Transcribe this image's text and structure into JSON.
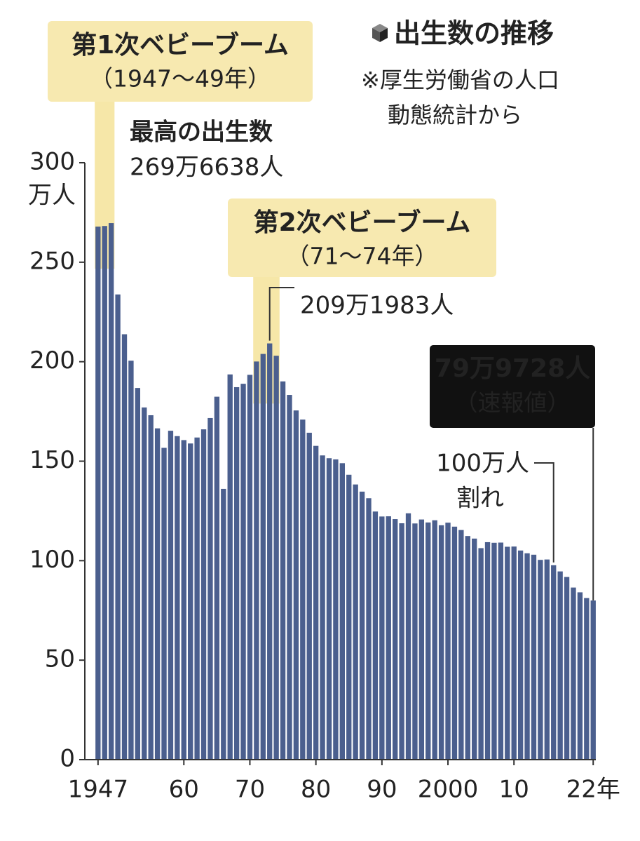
{
  "chart_data": {
    "type": "bar",
    "title": "出生数の推移",
    "source": [
      "※厚生労働省の人口",
      "動態統計から"
    ],
    "y_unit": "万人",
    "color": "#4b5f8e",
    "x": [
      1947,
      1948,
      1949,
      1950,
      1951,
      1952,
      1953,
      1954,
      1955,
      1956,
      1957,
      1958,
      1959,
      1960,
      1961,
      1962,
      1963,
      1964,
      1965,
      1966,
      1967,
      1968,
      1969,
      1970,
      1971,
      1972,
      1973,
      1974,
      1975,
      1976,
      1977,
      1978,
      1979,
      1980,
      1981,
      1982,
      1983,
      1984,
      1985,
      1986,
      1987,
      1988,
      1989,
      1990,
      1991,
      1992,
      1993,
      1994,
      1995,
      1996,
      1997,
      1998,
      1999,
      2000,
      2001,
      2002,
      2003,
      2004,
      2005,
      2006,
      2007,
      2008,
      2009,
      2010,
      2011,
      2012,
      2013,
      2014,
      2015,
      2016,
      2017,
      2018,
      2019,
      2020,
      2021,
      2022
    ],
    "values": [
      267.9,
      268.2,
      269.6638,
      233.8,
      213.8,
      200.5,
      186.8,
      177.0,
      173.1,
      166.5,
      156.7,
      165.3,
      162.6,
      160.6,
      158.9,
      161.9,
      166.0,
      171.7,
      182.4,
      136.1,
      193.6,
      187.2,
      188.9,
      193.4,
      200.1,
      203.9,
      209.1983,
      203.0,
      190.1,
      183.3,
      175.5,
      170.9,
      164.3,
      157.7,
      152.9,
      151.5,
      150.9,
      149.0,
      143.2,
      138.3,
      134.7,
      131.4,
      124.7,
      122.2,
      122.3,
      120.9,
      118.8,
      123.8,
      118.7,
      120.7,
      119.2,
      120.3,
      117.8,
      119.1,
      117.1,
      115.4,
      112.4,
      111.1,
      106.3,
      109.3,
      109.0,
      109.1,
      107.0,
      107.1,
      105.1,
      103.7,
      103.0,
      100.4,
      100.6,
      97.7,
      94.6,
      91.8,
      86.5,
      84.1,
      81.2,
      79.9728
    ],
    "value_labels": [
      null,
      null,
      "269万6638人",
      null,
      null,
      null,
      null,
      null,
      null,
      null,
      null,
      null,
      null,
      null,
      null,
      null,
      null,
      null,
      null,
      null,
      null,
      null,
      null,
      null,
      null,
      null,
      "209万1983人",
      null,
      null,
      null,
      null,
      null,
      null,
      null,
      null,
      null,
      null,
      null,
      null,
      null,
      null,
      null,
      null,
      null,
      null,
      null,
      null,
      null,
      null,
      null,
      null,
      null,
      null,
      null,
      null,
      null,
      null,
      null,
      null,
      null,
      null,
      null,
      null,
      null,
      null,
      null,
      null,
      null,
      null,
      null,
      null,
      null,
      null,
      null,
      null,
      "79万9728人"
    ],
    "xlim": [
      1945,
      2022.4
    ],
    "xticks": [
      1947,
      {
        "value": 1960,
        "label": "60"
      },
      {
        "value": 1970,
        "label": "70"
      },
      {
        "value": 1980,
        "label": "80"
      },
      {
        "value": 1990,
        "label": "90"
      },
      2000,
      {
        "value": 2010,
        "label": "10"
      },
      {
        "value": 2022,
        "label": "22年"
      }
    ],
    "ylim": [
      0,
      300
    ],
    "yticks": [
      0,
      50,
      100,
      150,
      200,
      250,
      300
    ],
    "booms": [
      {
        "lines": [
          "第1次ベビーブーム",
          "（1947～49年）"
        ],
        "span": [
          1947,
          1949
        ]
      },
      {
        "lines": [
          "第2次ベビーブーム",
          "（71～74年）"
        ],
        "span": [
          1971,
          1974
        ]
      }
    ],
    "peak_label": "最高の出生数",
    "provisional_label": "（速報値）",
    "below_million": {
      "lines": [
        "100万人",
        "割れ"
      ],
      "year": 2016
    }
  }
}
